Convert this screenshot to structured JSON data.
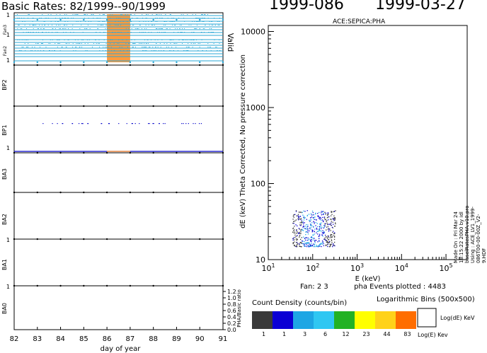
{
  "header": {
    "title": "Basic Rates: 82/1999--90/1999",
    "doy": "1999-086",
    "date": "1999-03-27"
  },
  "left_panel": {
    "xlabel": "day of year",
    "xticks": [
      "82",
      "83",
      "84",
      "85",
      "86",
      "87",
      "88",
      "89",
      "90",
      "91"
    ],
    "xlim": [
      82,
      91
    ],
    "strips": [
      {
        "label": "Fan3"
      },
      {
        "label": "Fan2"
      },
      {
        "label": "BP2"
      },
      {
        "label": "BP1"
      },
      {
        "label": "BA3"
      },
      {
        "label": "BA2"
      },
      {
        "label": "BA1"
      },
      {
        "label": "BA0"
      }
    ],
    "unit_label": "1",
    "valid_label": "Valid",
    "ratio_label": "PHA/Basic ratio",
    "ratio_ticks": [
      "0.0",
      "0.2",
      "0.4",
      "0.6",
      "0.8",
      "1.0",
      "1.2"
    ],
    "highlight_days": [
      86,
      87
    ],
    "colors": {
      "fan": "#2aa7d6",
      "highlight": "#ff8a1c",
      "bp1": "#0000c8"
    }
  },
  "chart_data": {
    "type": "scatter",
    "title": "ACE:SEPICA:PHA",
    "xlabel": "E (keV)",
    "ylabel": "dE (keV) Theta Corrected, No pressure correction",
    "x_scale": "log",
    "y_scale": "log",
    "xlim": [
      10,
      300000
    ],
    "ylim": [
      10,
      12000
    ],
    "xticks": [
      "10^1",
      "10^2",
      "10^3",
      "10^4",
      "10^5"
    ],
    "yticks": [
      "10",
      "100",
      "1000",
      "10000"
    ],
    "cluster": {
      "x_range": [
        35,
        320
      ],
      "y_range": [
        15,
        45
      ]
    },
    "fan_label": "Fan:  2 3",
    "events_label": "pha Events plotted : 4483"
  },
  "legend": {
    "title": "Count Density (counts/bin)",
    "log_bins": "Logarithmic Bins (500x500)",
    "bins": [
      {
        "label": "1",
        "color": "#3a3a3a"
      },
      {
        "label": "1",
        "color": "#0b00d4"
      },
      {
        "label": "3",
        "color": "#1ea6e4"
      },
      {
        "label": "6",
        "color": "#2fc7f2"
      },
      {
        "label": "12",
        "color": "#22b224"
      },
      {
        "label": "23",
        "color": "#ffff00"
      },
      {
        "label": "44",
        "color": "#ffd21a"
      },
      {
        "label": "83",
        "color": "#ff6d00"
      }
    ],
    "box_y_label": "Log(dE) KeV",
    "box_x_label": "Log(E) Kev"
  },
  "footer": {
    "made_on": "Made On : Fri Mar 24 18:15:22 2000  by idl baselRatesPHA.v10.pro",
    "using": "Using : ACE_LV1_1999-086T00-00-00Z_V2-9.HDF"
  }
}
